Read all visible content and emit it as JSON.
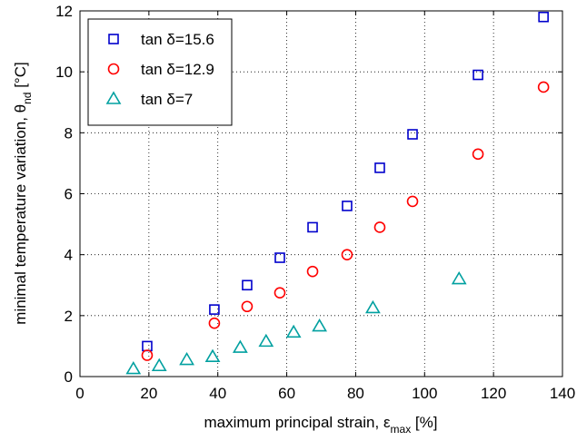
{
  "chart_data": {
    "type": "scatter",
    "xlabel": "maximum principal strain, ε",
    "xlabel_sub": "max",
    "xlabel_unit": " [%]",
    "ylabel": "minimal temperature variation, θ",
    "ylabel_sub": "nd",
    "ylabel_unit": " [°C]",
    "xlim": [
      0,
      140
    ],
    "ylim": [
      0,
      12
    ],
    "xticks": [
      0,
      20,
      40,
      60,
      80,
      100,
      120,
      140
    ],
    "yticks": [
      0,
      2,
      4,
      6,
      8,
      10,
      12
    ],
    "grid": true,
    "legend_position": "top-left",
    "series": [
      {
        "name": "tan δ=15.6",
        "marker": "square",
        "color": "#0000cc",
        "points": [
          [
            19.5,
            1.0
          ],
          [
            39,
            2.2
          ],
          [
            48.5,
            3.0
          ],
          [
            58,
            3.9
          ],
          [
            67.5,
            4.9
          ],
          [
            77.5,
            5.6
          ],
          [
            87,
            6.85
          ],
          [
            96.5,
            7.95
          ],
          [
            115.5,
            9.9
          ],
          [
            134.5,
            11.8
          ]
        ]
      },
      {
        "name": "tan δ=12.9",
        "marker": "circle",
        "color": "#ff0000",
        "points": [
          [
            19.5,
            0.7
          ],
          [
            39,
            1.75
          ],
          [
            48.5,
            2.3
          ],
          [
            58,
            2.75
          ],
          [
            67.5,
            3.45
          ],
          [
            77.5,
            4.0
          ],
          [
            87,
            4.9
          ],
          [
            96.5,
            5.75
          ],
          [
            115.5,
            7.3
          ],
          [
            134.5,
            9.5
          ]
        ]
      },
      {
        "name": "tan δ=7",
        "marker": "triangle",
        "color": "#00a0a0",
        "points": [
          [
            15.5,
            0.25
          ],
          [
            23,
            0.35
          ],
          [
            31,
            0.55
          ],
          [
            38.5,
            0.65
          ],
          [
            46.5,
            0.95
          ],
          [
            54,
            1.15
          ],
          [
            62,
            1.45
          ],
          [
            69.5,
            1.65
          ],
          [
            85,
            2.25
          ],
          [
            110,
            3.2
          ]
        ]
      }
    ]
  }
}
